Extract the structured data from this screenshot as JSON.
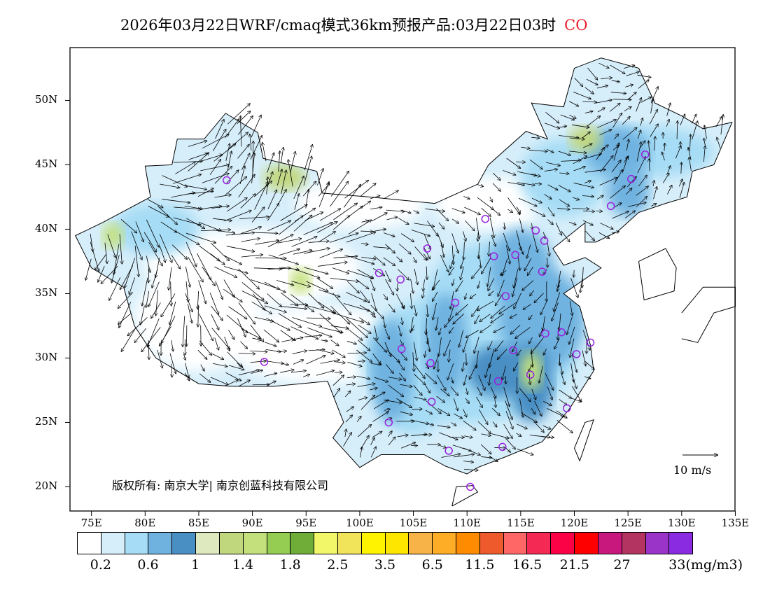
{
  "title": {
    "text": "2026年03月22日WRF/cmaq模式36km预报产品:03月22日03时",
    "species": "CO"
  },
  "axes": {
    "lat_labels": [
      "50N",
      "45N",
      "40N",
      "35N",
      "30N",
      "25N",
      "20N"
    ],
    "lat_values": [
      50,
      45,
      40,
      35,
      30,
      25,
      20
    ],
    "lon_labels": [
      "75E",
      "80E",
      "85E",
      "90E",
      "95E",
      "100E",
      "105E",
      "110E",
      "115E",
      "120E",
      "125E",
      "130E",
      "135E"
    ],
    "lon_values": [
      75,
      80,
      85,
      90,
      95,
      100,
      105,
      110,
      115,
      120,
      125,
      130,
      135
    ]
  },
  "copyright": "版权所有: 南京大学| 南京创蓝科技有限公司",
  "wind_scale": {
    "label": "10 m/s",
    "value": 10
  },
  "colorbar": {
    "colors": [
      "#ffffff",
      "#d6eefa",
      "#a6dcf5",
      "#6fb2e0",
      "#4a8fc4",
      "#dfe9c0",
      "#c1d77d",
      "#c3e07c",
      "#94cd52",
      "#70ad38",
      "#f2f76a",
      "#f1e45a",
      "#fff300",
      "#ffe600",
      "#f7b347",
      "#fdae26",
      "#ff8c00",
      "#ef5a2c",
      "#ff6666",
      "#f42a55",
      "#fb0145",
      "#ff0000",
      "#c8187e",
      "#b33461",
      "#9a33c8",
      "#8a2be2"
    ],
    "labels": [
      "0.2",
      "0.6",
      "1",
      "1.4",
      "1.8",
      "2.5",
      "3.5",
      "6.5",
      "11.5",
      "16.5",
      "21.5",
      "27",
      "33(mg/m3)"
    ]
  }
}
